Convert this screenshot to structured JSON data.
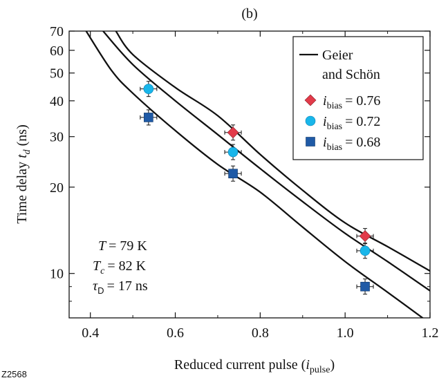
{
  "panel_label": "(b)",
  "figure_id": "Z2568",
  "colors": {
    "diamond": "#e23b4a",
    "circle": "#19b6ea",
    "square": "#1f5aa6",
    "curve": "#111111"
  },
  "chart_data": {
    "type": "scatter",
    "xlabel": "Reduced current pulse (i_pulse)",
    "ylabel": "Time delay t_d (ns)",
    "x_ticks": [
      "0.4",
      "0.6",
      "0.8",
      "1.0",
      "1.2"
    ],
    "y_ticks": [
      "10",
      "20",
      "30",
      "40",
      "50",
      "60",
      "70"
    ],
    "xlim": [
      0.35,
      1.2
    ],
    "ylim": [
      7,
      70
    ],
    "y_scale": "log",
    "legend_position": "top-right",
    "legend": {
      "curve_label_line1": "Geier",
      "curve_label_line2": "and Schön",
      "entries": [
        {
          "marker": "diamond",
          "label_value": "= 0.76"
        },
        {
          "marker": "circle",
          "label_value": "= 0.72"
        },
        {
          "marker": "square",
          "label_value": "= 0.68"
        }
      ]
    },
    "annotation": {
      "T_value": "= 79 K",
      "Tc_value": "= 82 K",
      "tauD_value": "= 17 ns"
    },
    "series": [
      {
        "name": "i_bias = 0.76",
        "marker": "diamond",
        "points": [
          {
            "x": 0.736,
            "y": 31
          },
          {
            "x": 1.047,
            "y": 13.5
          }
        ]
      },
      {
        "name": "i_bias = 0.72",
        "marker": "circle",
        "points": [
          {
            "x": 0.537,
            "y": 44
          },
          {
            "x": 0.736,
            "y": 26.5
          },
          {
            "x": 1.047,
            "y": 12
          }
        ]
      },
      {
        "name": "i_bias = 0.68",
        "marker": "square",
        "points": [
          {
            "x": 0.537,
            "y": 35
          },
          {
            "x": 0.736,
            "y": 22.3
          },
          {
            "x": 1.047,
            "y": 9
          }
        ]
      }
    ],
    "curves": [
      {
        "name": "Geier and Schön (0.76)",
        "points": [
          [
            0.46,
            70
          ],
          [
            0.5,
            58
          ],
          [
            0.6,
            44.5
          ],
          [
            0.7,
            35.5
          ],
          [
            0.8,
            26
          ],
          [
            0.9,
            19.5
          ],
          [
            1.0,
            15
          ],
          [
            1.1,
            12.4
          ],
          [
            1.2,
            10.2
          ]
        ]
      },
      {
        "name": "Geier and Schön (0.72)",
        "points": [
          [
            0.43,
            70
          ],
          [
            0.5,
            53.5
          ],
          [
            0.6,
            40
          ],
          [
            0.7,
            30.5
          ],
          [
            0.8,
            23.2
          ],
          [
            0.9,
            17.8
          ],
          [
            1.0,
            13.8
          ],
          [
            1.1,
            11
          ],
          [
            1.2,
            8.7
          ]
        ]
      },
      {
        "name": "Geier and Schön (0.68)",
        "points": [
          [
            0.39,
            70
          ],
          [
            0.45,
            51
          ],
          [
            0.5,
            42.5
          ],
          [
            0.6,
            31.5
          ],
          [
            0.7,
            24
          ],
          [
            0.8,
            19.2
          ],
          [
            0.9,
            14.5
          ],
          [
            1.0,
            11
          ],
          [
            1.1,
            8.6
          ],
          [
            1.2,
            6.7
          ]
        ]
      }
    ]
  }
}
